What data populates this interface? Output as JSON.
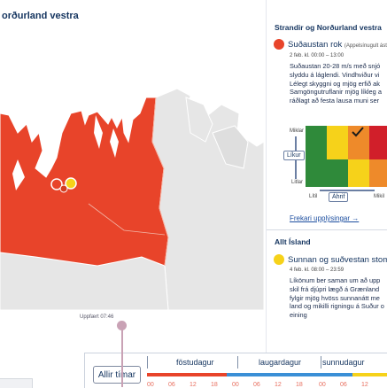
{
  "map": {
    "title": "orðurland vestra",
    "updated": "Uppfært 07:46"
  },
  "panel": {
    "region_title": "Strandir og Norðurland vestra",
    "warning1": {
      "title": "Suðaustan rok",
      "title_note": "(Appelsínugult ást",
      "date": "2 feb. kl. 00:00 – 13:00",
      "lines": [
        "Suðaustan 20-28 m/s með snjó",
        "slyddu á láglendi. Vindhviður vi",
        "Lélegt skyggni og mjög erfið ak",
        "Samgöngutruflanir mjög líkleg a",
        "ráðlagt að festa lausa muni ser"
      ]
    },
    "matrix": {
      "y_high": "Miklar",
      "y_label": "Líkur",
      "y_low": "Litlar",
      "x_low": "Lítil",
      "x_label": "Áhrif",
      "x_high": "Mikil"
    },
    "more_link": "Frekari upplýsingar →",
    "allt_title": "Allt Ísland",
    "warning2": {
      "title": "Sunnan og suðvestan stom",
      "date": "4 feb. kl. 08:00 – 23:59",
      "lines": [
        "Líkönum ber saman um að upp",
        "skil frá djúpri lægð á Grænland",
        "fylgir mjög hvöss sunnanátt me",
        "land og mikilli rigningu á Suður o",
        "eining"
      ]
    }
  },
  "timeline": {
    "all_button": "Allir tímar",
    "days": [
      "föstudagur",
      "laugardagur",
      "sunnudagur"
    ],
    "hours": [
      "00",
      "06",
      "12",
      "18",
      "00",
      "06",
      "12",
      "18",
      "00",
      "06",
      "12"
    ]
  },
  "colors": {
    "orange_warning": "#e8442a",
    "yellow_warning": "#f6d21a",
    "timeline_blue": "#3a8fd6",
    "land": "#e6e6e6"
  }
}
